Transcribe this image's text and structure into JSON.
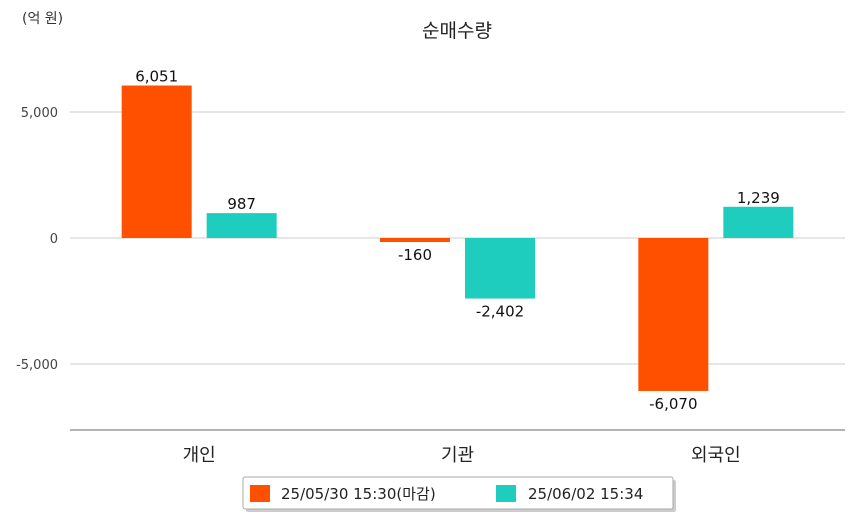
{
  "chart_data": {
    "type": "bar",
    "title": "순매수량",
    "unit_label": "(억 원)",
    "categories": [
      "개인",
      "기관",
      "외국인"
    ],
    "series": [
      {
        "name": "25/05/30 15:30(마감)",
        "color": "#ff5000",
        "values": [
          6051,
          -160,
          -6070
        ],
        "labels": [
          "6,051",
          "-160",
          "-6,070"
        ]
      },
      {
        "name": "25/06/02 15:34",
        "color": "#1ecdbe",
        "values": [
          987,
          -2402,
          1239
        ],
        "labels": [
          "987",
          "-2,402",
          "1,239"
        ]
      }
    ],
    "yticks": [
      5000,
      0,
      -5000
    ],
    "ytick_labels": [
      "5,000",
      "0",
      "-5,000"
    ],
    "ylim": [
      -7500,
      7500
    ],
    "grid": true,
    "legend_position": "bottom-center"
  }
}
